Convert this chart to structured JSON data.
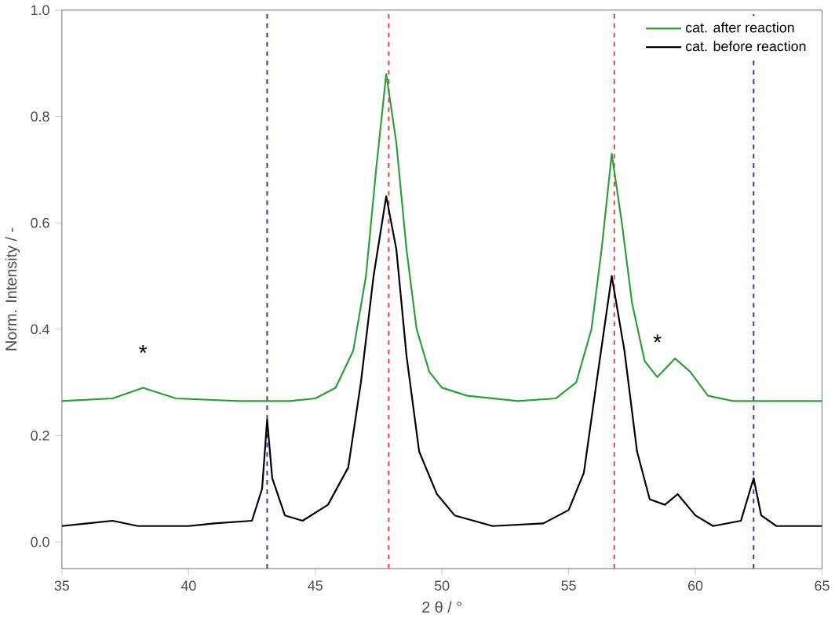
{
  "chart_data": {
    "type": "line",
    "xlabel": "2 θ / °",
    "ylabel": "Norm. Intensity / -",
    "xlim": [
      35,
      65
    ],
    "ylim": [
      -0.05,
      1.0
    ],
    "xticks": [
      35,
      40,
      45,
      50,
      55,
      60,
      65
    ],
    "yticks": [
      {
        "value": 0,
        "label": "0.0"
      },
      0.2,
      0.4,
      0.6,
      0.8,
      {
        "value": 1,
        "label": "1.0"
      }
    ],
    "legend": "top right",
    "grid": false,
    "marker": "none",
    "line_style": "solid",
    "series": [
      {
        "name": "cat. after reaction",
        "color": "#2e9e3a",
        "x": [
          35,
          37,
          38.2,
          39.5,
          42,
          44,
          45,
          45.8,
          46.5,
          47,
          47.4,
          47.8,
          48.2,
          48.6,
          49,
          49.5,
          50,
          51,
          53,
          54.5,
          55.3,
          55.9,
          56.3,
          56.7,
          57.1,
          57.5,
          58,
          58.5,
          59.2,
          59.8,
          60.5,
          61.5,
          65
        ],
        "values": [
          0.265,
          0.27,
          0.29,
          0.27,
          0.265,
          0.265,
          0.27,
          0.29,
          0.36,
          0.5,
          0.7,
          0.88,
          0.75,
          0.55,
          0.4,
          0.32,
          0.29,
          0.275,
          0.265,
          0.27,
          0.3,
          0.4,
          0.55,
          0.73,
          0.6,
          0.45,
          0.34,
          0.31,
          0.345,
          0.32,
          0.275,
          0.265,
          0.265
        ]
      },
      {
        "name": "cat. before reaction",
        "color": "#000000",
        "x": [
          35,
          36,
          37,
          38,
          40,
          41,
          42.5,
          42.9,
          43.1,
          43.3,
          43.8,
          44.5,
          45.5,
          46.3,
          46.8,
          47.3,
          47.8,
          48.2,
          48.6,
          49.1,
          49.8,
          50.5,
          52,
          54,
          55,
          55.6,
          56.1,
          56.7,
          57.2,
          57.7,
          58.2,
          58.8,
          59.3,
          60,
          60.7,
          61.8,
          62.3,
          62.6,
          63.2,
          65
        ],
        "values": [
          0.03,
          0.035,
          0.04,
          0.03,
          0.03,
          0.035,
          0.04,
          0.1,
          0.23,
          0.12,
          0.05,
          0.04,
          0.07,
          0.14,
          0.3,
          0.5,
          0.65,
          0.55,
          0.35,
          0.17,
          0.09,
          0.05,
          0.03,
          0.035,
          0.06,
          0.13,
          0.3,
          0.5,
          0.36,
          0.17,
          0.08,
          0.07,
          0.09,
          0.05,
          0.03,
          0.04,
          0.12,
          0.05,
          0.03,
          0.03
        ]
      }
    ],
    "ref_lines": [
      {
        "axis": "x",
        "value": 43.1,
        "color": "#3a3aa0",
        "line_style": "dashed"
      },
      {
        "axis": "x",
        "value": 47.9,
        "color": "#e04040",
        "line_style": "dashed"
      },
      {
        "axis": "x",
        "value": 56.8,
        "color": "#e04040",
        "line_style": "dashed"
      },
      {
        "axis": "x",
        "value": 62.3,
        "color": "#3a3aa0",
        "line_style": "dashed"
      }
    ],
    "annotations": [
      {
        "text": "*",
        "x": 38.2,
        "y": 0.29
      },
      {
        "text": "*",
        "x": 58.5,
        "y": 0.31
      }
    ]
  }
}
